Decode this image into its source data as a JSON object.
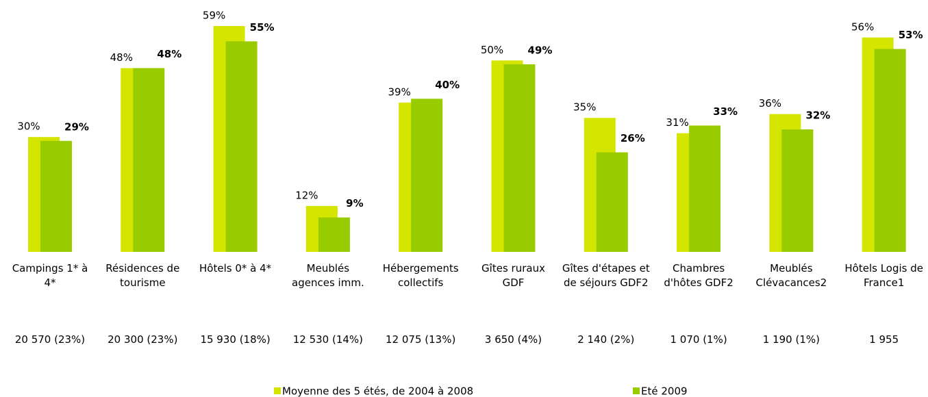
{
  "chart_data": {
    "type": "bar",
    "categories": [
      "Campings 1* à 4*",
      "Résidences de tourisme",
      "Hôtels 0* à 4*",
      "Meublés agences imm.",
      "Hébergements collectifs",
      "Gîtes ruraux GDF",
      "Gîtes d'étapes et de séjours GDF2",
      "Chambres d'hôtes GDF2",
      "Meublés Clévacances2",
      "Hôtels Logis de France1"
    ],
    "counts": [
      "20 570 (23%)",
      "20 300 (23%)",
      "15 930 (18%)",
      "12 530 (14%)",
      "12 075 (13%)",
      "3 650 (4%)",
      "2 140 (2%)",
      "1 070 (1%)",
      "1 190 (1%)",
      "1 955"
    ],
    "series": [
      {
        "name": "Moyenne des 5 étés, de 2004 à 2008",
        "color": "#d4e600",
        "values": [
          30,
          48,
          59,
          12,
          39,
          50,
          35,
          31,
          36,
          56
        ],
        "value_labels": [
          "30%",
          "48%",
          "59%",
          "12%",
          "39%",
          "50%",
          "35%",
          "31%",
          "36%",
          "56%"
        ]
      },
      {
        "name": "Eté 2009",
        "color": "#99cc00",
        "values": [
          29,
          48,
          55,
          9,
          40,
          49,
          26,
          33,
          32,
          53
        ],
        "value_labels": [
          "29%",
          "48%",
          "55%",
          "9%",
          "40%",
          "49%",
          "26%",
          "33%",
          "32%",
          "53%"
        ]
      }
    ]
  }
}
